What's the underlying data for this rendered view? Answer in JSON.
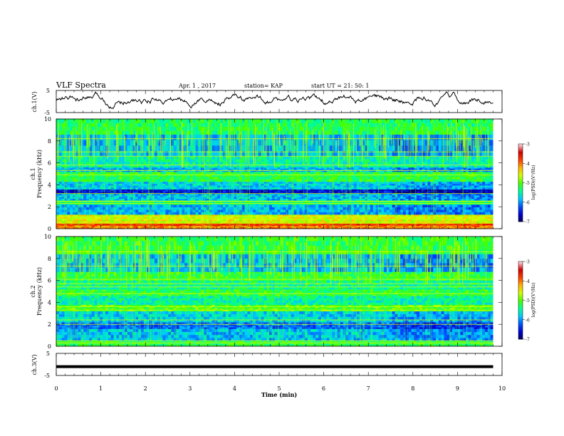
{
  "header": {
    "title": "VLF Spectra",
    "date": "Apr. 1 , 2017",
    "station": "station= KAP",
    "start_ut": "start  UT =  21: 50: 1"
  },
  "chart_data": {
    "type": "heatmap",
    "x_axis": {
      "label": "Time (min)",
      "range": [
        0,
        10
      ],
      "ticks": [
        "0",
        "1",
        "2",
        "3",
        "4",
        "5",
        "6",
        "7",
        "8",
        "9",
        "10"
      ],
      "data_end_min": 9.8
    },
    "panels": [
      {
        "id": "ch1_waveform",
        "type": "line",
        "ylabel": "ch.1(V)",
        "ylim": [
          -5,
          5
        ],
        "yticks": [
          "5",
          "-5"
        ],
        "description_values": {
          "baseline_v": 0.6,
          "amplitude_v": 2.0
        }
      },
      {
        "id": "ch1_spectrogram",
        "type": "heatmap",
        "ylabel_channel": "ch.1",
        "ylabel": "Frequency (kHz)",
        "ylim": [
          0,
          10
        ],
        "yticks": [
          "0",
          "2",
          "4",
          "6",
          "8",
          "10"
        ],
        "colorbar": {
          "label": "log(PSD)(V²/Hz)",
          "range": [
            -7,
            -3
          ],
          "ticks": [
            "-3",
            "-4",
            "-5",
            "-6",
            "-7"
          ],
          "colormap": [
            "#00005a",
            "#0000d0",
            "#0050ff",
            "#00c8ff",
            "#00ff96",
            "#46ff00",
            "#d2ff00",
            "#ffb400",
            "#ff3c00",
            "#d20000",
            "#ffd2dc"
          ]
        },
        "bands": [
          {
            "f": [
              0.0,
              0.3
            ],
            "level": 0.75
          },
          {
            "f": [
              0.3,
              0.5
            ],
            "level": 0.82
          },
          {
            "f": [
              0.5,
              1.3
            ],
            "level": 0.62
          },
          {
            "f": [
              1.3,
              2.2
            ],
            "level": 0.28
          },
          {
            "f": [
              2.2,
              2.6
            ],
            "level": 0.42
          },
          {
            "f": [
              2.6,
              3.2
            ],
            "level": 0.3
          },
          {
            "f": [
              3.2,
              3.6
            ],
            "level": 0.12
          },
          {
            "f": [
              3.6,
              4.3
            ],
            "level": 0.32
          },
          {
            "f": [
              4.3,
              5.2
            ],
            "level": 0.45
          },
          {
            "f": [
              5.2,
              5.6
            ],
            "level": 0.28
          },
          {
            "f": [
              5.6,
              6.6
            ],
            "level": 0.38
          },
          {
            "f": [
              6.6,
              8.6
            ],
            "level": 0.3
          },
          {
            "f": [
              8.6,
              10.0
            ],
            "level": 0.44
          }
        ],
        "lines_khz": [
          0.5,
          0.9,
          1.1,
          2.3,
          2.5,
          3.2,
          4.9,
          5.3,
          5.8,
          6.6,
          7.0,
          8.2
        ]
      },
      {
        "id": "ch2_spectrogram",
        "type": "heatmap",
        "ylabel_channel": "ch.2",
        "ylabel": "Frequency (kHz)",
        "ylim": [
          0,
          10
        ],
        "yticks": [
          "0",
          "2",
          "4",
          "6",
          "8",
          "10"
        ],
        "colorbar": {
          "label": "log(PSD)(V²/Hz)",
          "range": [
            -7,
            -3
          ],
          "ticks": [
            "-3",
            "-4",
            "-5",
            "-6",
            "-7"
          ]
        },
        "bands": [
          {
            "f": [
              0.0,
              0.5
            ],
            "level": 0.45
          },
          {
            "f": [
              0.5,
              1.6
            ],
            "level": 0.3
          },
          {
            "f": [
              1.6,
              2.2
            ],
            "level": 0.22
          },
          {
            "f": [
              2.2,
              3.2
            ],
            "level": 0.32
          },
          {
            "f": [
              3.2,
              3.8
            ],
            "level": 0.5
          },
          {
            "f": [
              3.8,
              4.6
            ],
            "level": 0.38
          },
          {
            "f": [
              4.6,
              5.2
            ],
            "level": 0.46
          },
          {
            "f": [
              5.2,
              6.0
            ],
            "level": 0.4
          },
          {
            "f": [
              6.0,
              6.8
            ],
            "level": 0.46
          },
          {
            "f": [
              6.8,
              8.4
            ],
            "level": 0.3
          },
          {
            "f": [
              8.4,
              10.0
            ],
            "level": 0.46
          }
        ],
        "lines_khz": [
          0.3,
          0.5,
          2.0,
          2.4,
          3.3,
          3.6,
          4.8,
          5.4,
          5.7,
          6.1,
          7.3,
          8.6
        ]
      },
      {
        "id": "ch3_waveform",
        "type": "line",
        "ylabel": "ch.3(V)",
        "ylim": [
          -5,
          5
        ],
        "yticks": [
          "5",
          "-5"
        ],
        "description_values": {
          "baseline_v": -1.0,
          "amplitude_v": 0.0
        }
      }
    ]
  }
}
